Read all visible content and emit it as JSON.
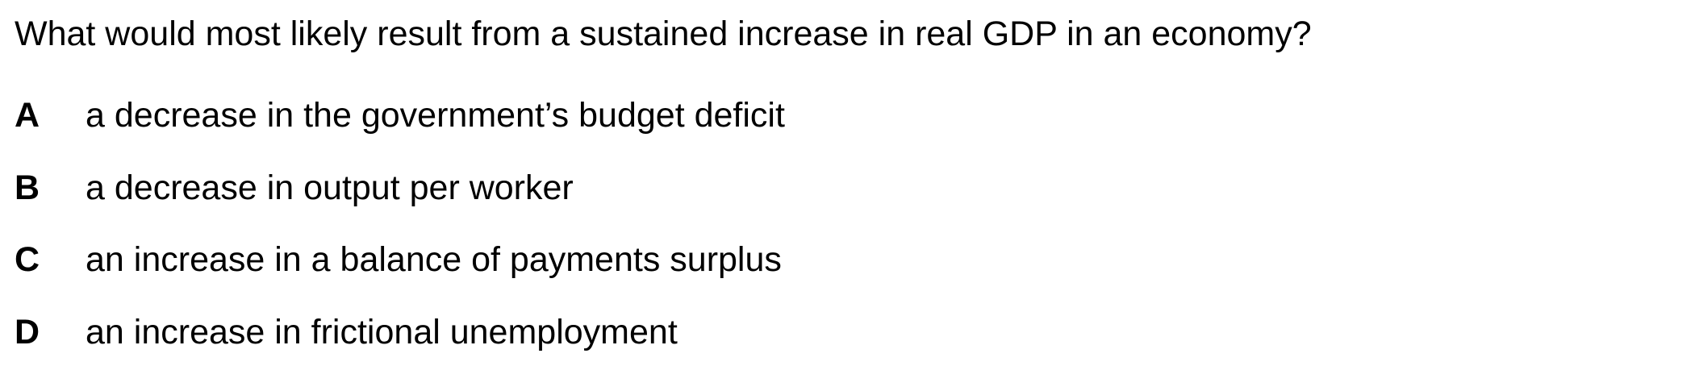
{
  "question": {
    "text": "What would most likely result from a sustained increase in real GDP in an economy?"
  },
  "options": [
    {
      "letter": "A",
      "text": "a decrease in the government’s budget deficit"
    },
    {
      "letter": "B",
      "text": "a decrease in output per worker"
    },
    {
      "letter": "C",
      "text": "an increase in a balance of payments surplus"
    },
    {
      "letter": "D",
      "text": "an increase in frictional unemployment"
    }
  ]
}
